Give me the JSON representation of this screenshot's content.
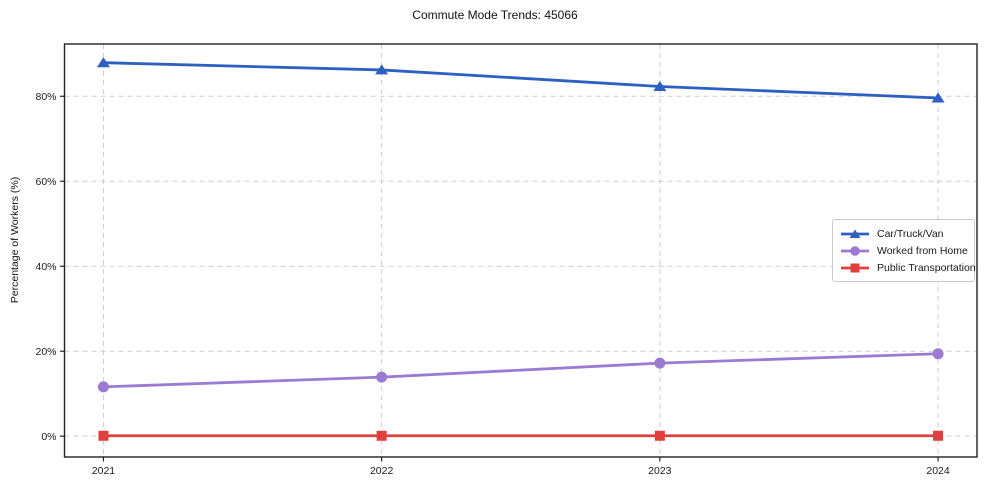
{
  "chart_data": {
    "type": "line",
    "title": "Commute Mode Trends: 45066",
    "xlabel": "",
    "ylabel": "Percentage of Workers (%)",
    "categories": [
      "2021",
      "2022",
      "2023",
      "2024"
    ],
    "x": [
      2021,
      2022,
      2023,
      2024
    ],
    "series": [
      {
        "name": "Car/Truck/Van",
        "values": [
          87.9,
          86.2,
          82.3,
          79.6
        ],
        "color": "#2e5fc2",
        "marker": "triangle"
      },
      {
        "name": "Worked from Home",
        "values": [
          11.6,
          13.9,
          17.2,
          19.4
        ],
        "color": "#9b7ad4",
        "marker": "circle"
      },
      {
        "name": "Public Transportation",
        "values": [
          0.1,
          0.1,
          0.1,
          0.1
        ],
        "color": "#e13e3e",
        "marker": "square"
      }
    ],
    "yticks": [
      0,
      20,
      40,
      60,
      80
    ],
    "ytick_labels": [
      "0%",
      "20%",
      "40%",
      "60%",
      "80%"
    ],
    "ylim": [
      -4.9,
      92.3
    ],
    "xlim": [
      2020.86,
      2024.14
    ],
    "grid": true,
    "grid_style": "dashed",
    "legend_position": "right-center",
    "appearance": {
      "background": "#ffffff",
      "grid_color": "#cdcdcd",
      "spine_color": "#222222",
      "tick_color": "#222222",
      "text_color": "#1a1a1a",
      "legend_border_color": "#c9c9c9"
    }
  }
}
